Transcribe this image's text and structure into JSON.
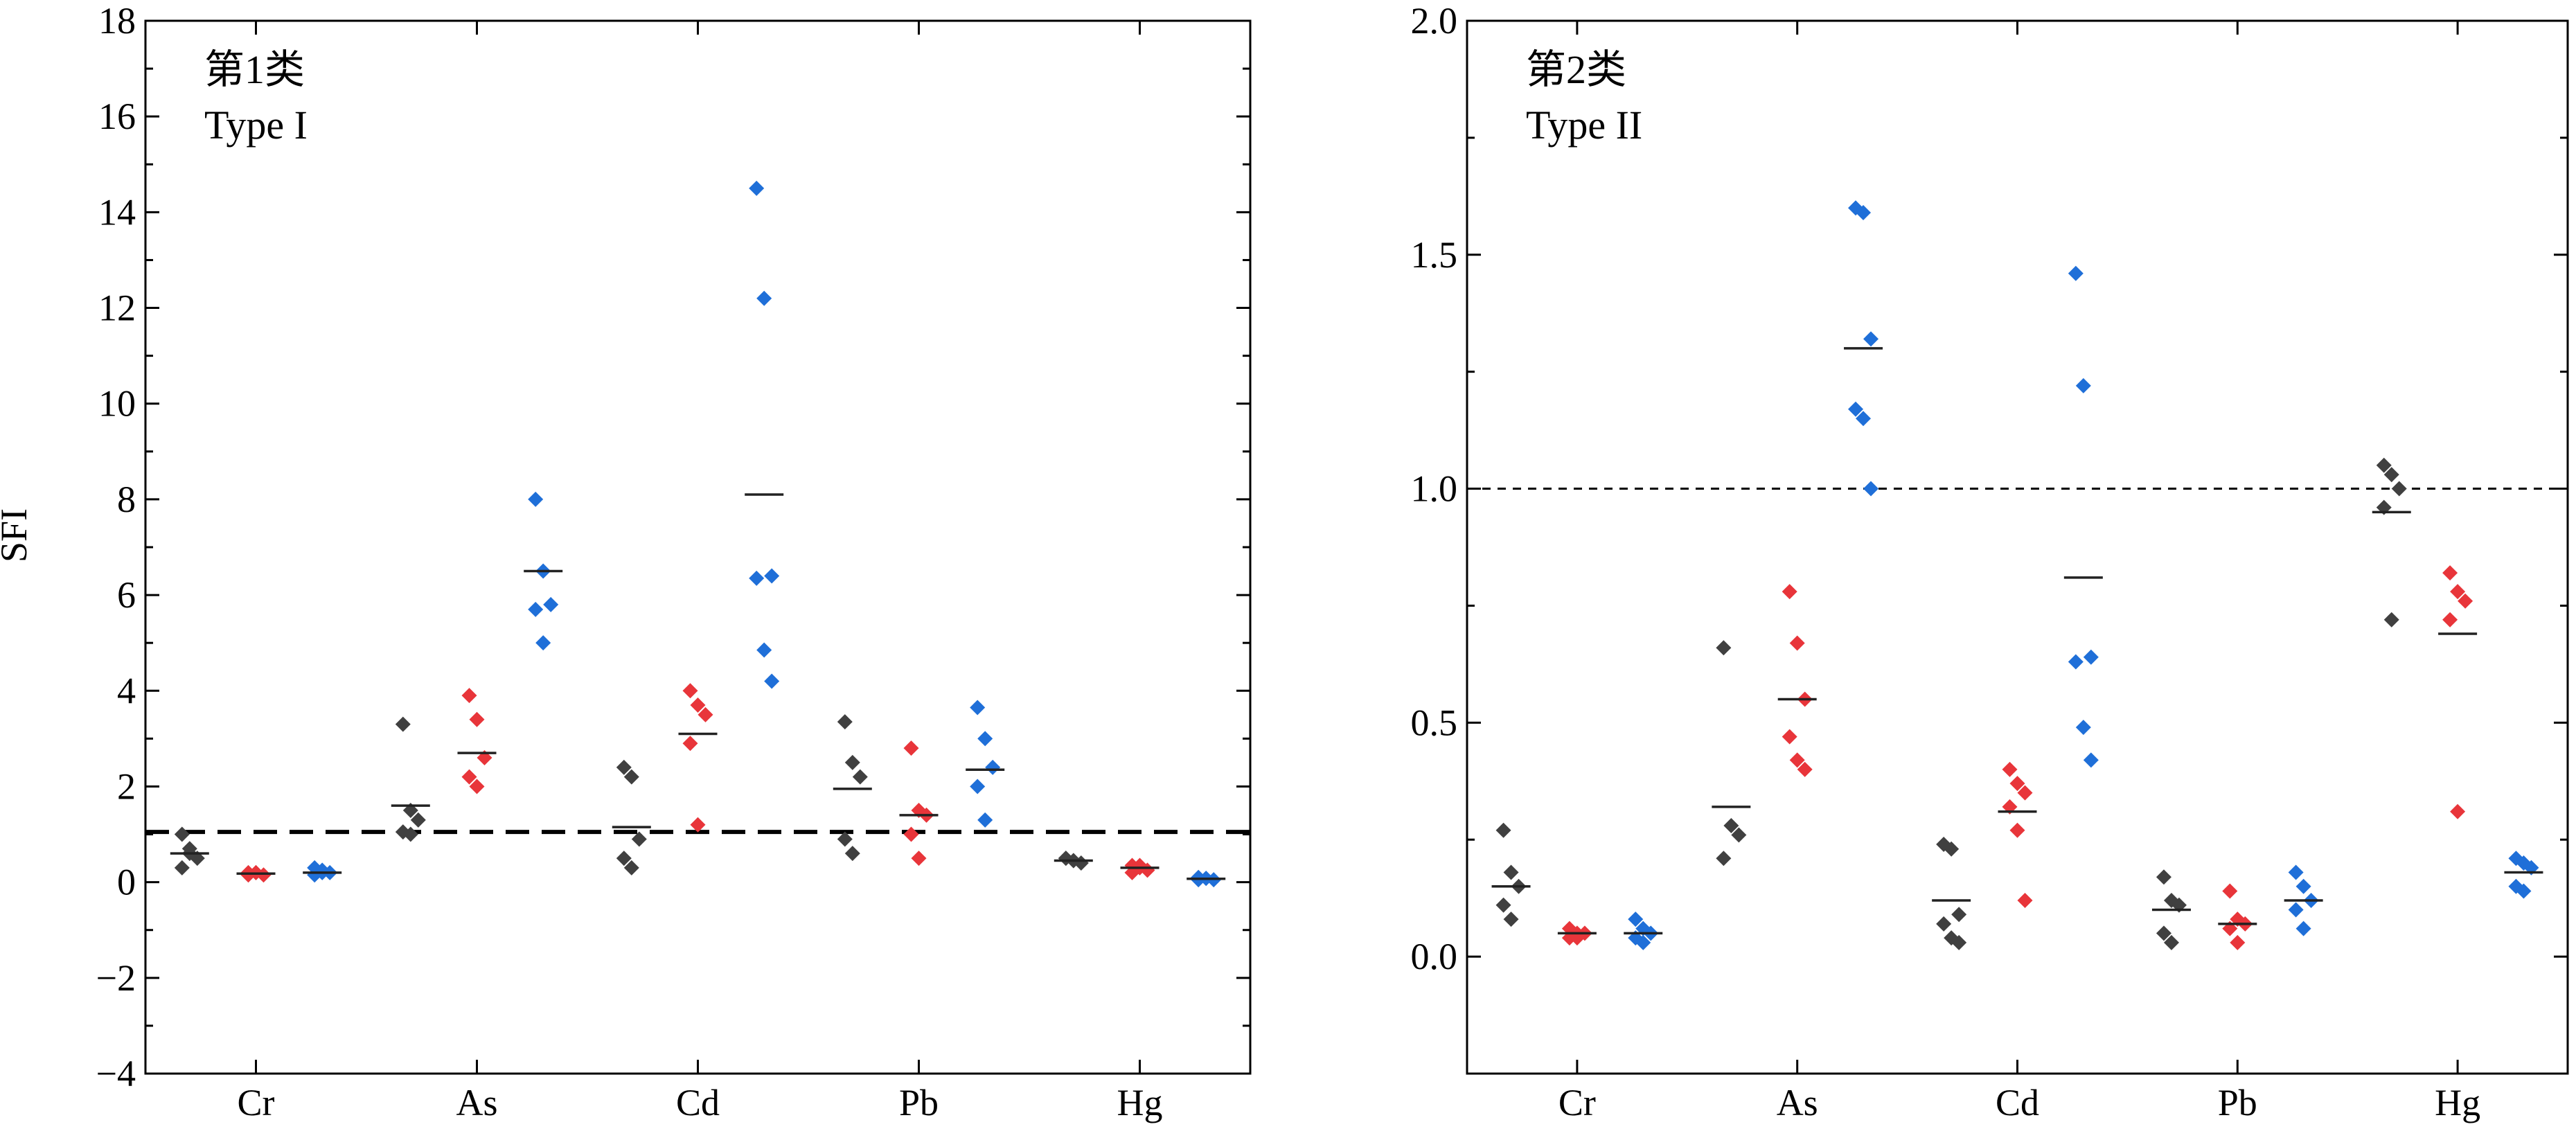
{
  "figure": {
    "ylabel": "SFI",
    "colors": {
      "group1": "#404040",
      "group2": "#e8353a",
      "group3": "#1f6fd8",
      "axis": "#000000"
    }
  },
  "chart_data": [
    {
      "type": "scatter",
      "panel_label_cn": "第1类",
      "panel_label_en": "Type I",
      "xlabel": "",
      "ylabel": "SFI",
      "categories": [
        "Cr",
        "As",
        "Cd",
        "Pb",
        "Hg"
      ],
      "ylim": [
        -4,
        18
      ],
      "yticks": [
        -4,
        -2,
        0,
        2,
        4,
        6,
        8,
        10,
        12,
        14,
        16,
        18
      ],
      "ytick_labels": [
        "−4",
        "−2",
        "0",
        "2",
        "4",
        "6",
        "8",
        "10",
        "12",
        "14",
        "16",
        "18"
      ],
      "reference_line": {
        "y": 1.05,
        "style": "dashed"
      },
      "grid": false,
      "series": [
        {
          "color": "#404040",
          "offset": -0.3,
          "points": [
            [
              1.0,
              0.7,
              0.5,
              0.3,
              0.6
            ],
            [
              3.3,
              1.5,
              1.3,
              1.05,
              1.0
            ],
            [
              2.4,
              2.2,
              0.9,
              0.5,
              0.3
            ],
            [
              3.35,
              2.5,
              2.2,
              0.9,
              0.6
            ],
            [
              0.5,
              0.45,
              0.4,
              0.5,
              0.45
            ]
          ],
          "means": [
            0.6,
            1.6,
            1.15,
            1.95,
            0.45
          ]
        },
        {
          "color": "#e8353a",
          "offset": 0.0,
          "points": [
            [
              0.2,
              0.2,
              0.15,
              0.15,
              0.2
            ],
            [
              3.9,
              3.4,
              2.6,
              2.2,
              2.0
            ],
            [
              4.0,
              3.7,
              3.5,
              2.9,
              1.2
            ],
            [
              2.8,
              1.5,
              1.4,
              1.0,
              0.5
            ],
            [
              0.35,
              0.3,
              0.25,
              0.2,
              0.35
            ]
          ],
          "means": [
            0.18,
            2.7,
            3.1,
            1.4,
            0.3
          ]
        },
        {
          "color": "#1f6fd8",
          "offset": 0.3,
          "points": [
            [
              0.3,
              0.25,
              0.2,
              0.15,
              0.2
            ],
            [
              8.0,
              6.5,
              5.8,
              5.7,
              5.0
            ],
            [
              14.5,
              12.2,
              6.4,
              6.35,
              4.85,
              4.2
            ],
            [
              3.65,
              3.0,
              2.4,
              2.0,
              1.3
            ],
            [
              0.1,
              0.08,
              0.05,
              0.05,
              0.08
            ]
          ],
          "means": [
            0.2,
            6.5,
            8.1,
            2.35,
            0.07
          ]
        }
      ]
    },
    {
      "type": "scatter",
      "panel_label_cn": "第2类",
      "panel_label_en": "Type II",
      "xlabel": "",
      "ylabel": "",
      "categories": [
        "Cr",
        "As",
        "Cd",
        "Pb",
        "Hg"
      ],
      "ylim": [
        -0.25,
        2.0
      ],
      "yticks": [
        0.0,
        0.5,
        1.0,
        1.5,
        2.0
      ],
      "ytick_labels": [
        "0.0",
        "0.5",
        "1.0",
        "1.5",
        "2.0"
      ],
      "reference_line": {
        "y": 1.0,
        "style": "dashed"
      },
      "grid": false,
      "series": [
        {
          "color": "#404040",
          "offset": -0.3,
          "points": [
            [
              0.27,
              0.18,
              0.15,
              0.11,
              0.08
            ],
            [
              0.66,
              0.28,
              0.26,
              0.21
            ],
            [
              0.24,
              0.23,
              0.09,
              0.07,
              0.04,
              0.03
            ],
            [
              0.17,
              0.12,
              0.11,
              0.05,
              0.03
            ],
            [
              1.05,
              1.03,
              1.0,
              0.96,
              0.72
            ]
          ],
          "means": [
            0.15,
            0.32,
            0.12,
            0.1,
            0.95
          ]
        },
        {
          "color": "#e8353a",
          "offset": 0.0,
          "points": [
            [
              0.06,
              0.05,
              0.05,
              0.04,
              0.04
            ],
            [
              0.78,
              0.67,
              0.55,
              0.47,
              0.42,
              0.4
            ],
            [
              0.4,
              0.37,
              0.35,
              0.32,
              0.27,
              0.12
            ],
            [
              0.14,
              0.08,
              0.07,
              0.06,
              0.03
            ],
            [
              0.82,
              0.78,
              0.76,
              0.72,
              0.31
            ]
          ],
          "means": [
            0.05,
            0.55,
            0.31,
            0.07,
            0.69
          ]
        },
        {
          "color": "#1f6fd8",
          "offset": 0.3,
          "points": [
            [
              0.08,
              0.06,
              0.05,
              0.04,
              0.03
            ],
            [
              1.6,
              1.59,
              1.32,
              1.17,
              1.15,
              1.0
            ],
            [
              1.46,
              1.22,
              0.64,
              0.63,
              0.49,
              0.42
            ],
            [
              0.18,
              0.15,
              0.12,
              0.1,
              0.06
            ],
            [
              0.21,
              0.2,
              0.19,
              0.15,
              0.14
            ]
          ],
          "means": [
            0.05,
            1.3,
            0.81,
            0.12,
            0.18
          ]
        }
      ]
    }
  ]
}
